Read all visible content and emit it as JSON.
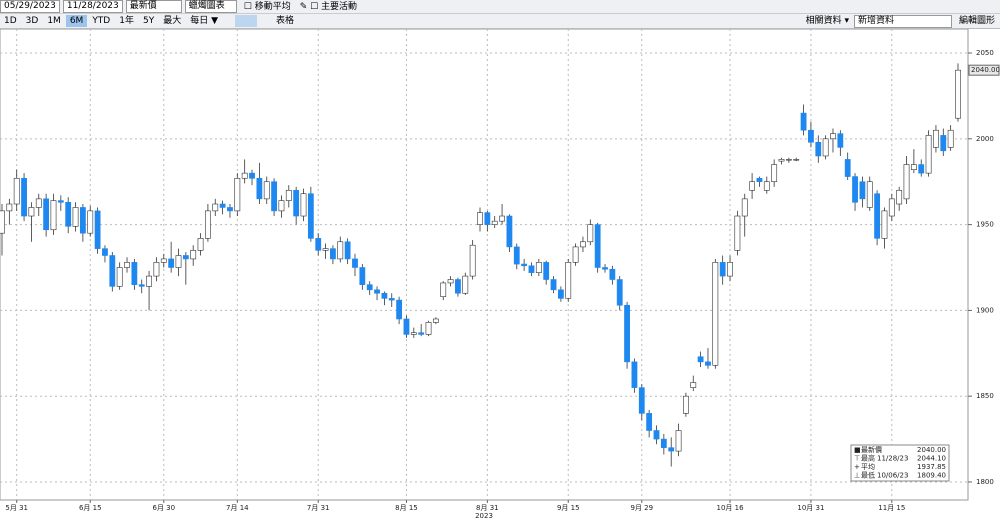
{
  "toolbar": {
    "start_date": "05/29/2023",
    "end_date": "11/28/2023",
    "field": "最新價",
    "chart_style": "蠟燭圖表",
    "moving_average": "移動平均",
    "key_events": "主要活動",
    "periods": [
      "1D",
      "3D",
      "1M",
      "6M",
      "YTD",
      "1年",
      "5Y",
      "最大",
      "每日 ▼"
    ],
    "table": "表格",
    "related": "相關資料 ▾",
    "add_data": "新增資料",
    "edit": "編輯圖形"
  },
  "chart_data": {
    "type": "candlestick",
    "categories": [
      null,
      null,
      "5月 31",
      null,
      null,
      null,
      null,
      null,
      null,
      null,
      null,
      null,
      "6月 15",
      null,
      null,
      null,
      null,
      null,
      null,
      null,
      null,
      null,
      "6月 30",
      null,
      null,
      null,
      null,
      null,
      null,
      null,
      null,
      null,
      "7月 14",
      null,
      null,
      null,
      null,
      null,
      null,
      null,
      null,
      null,
      null,
      "7月 31",
      null,
      null,
      null,
      null,
      null,
      null,
      null,
      null,
      null,
      null,
      null,
      "8月 15",
      null,
      null,
      null,
      null,
      null,
      null,
      null,
      null,
      null,
      null,
      "8月 31",
      null,
      null,
      null,
      null,
      null,
      null,
      null,
      null,
      null,
      null,
      "9月 15",
      null,
      null,
      null,
      null,
      null,
      null,
      null,
      null,
      null,
      "9月 29",
      null,
      null,
      null,
      null,
      null,
      null,
      null,
      null,
      null,
      null,
      null,
      "10月 16",
      null,
      null,
      null,
      null,
      null,
      null,
      null,
      null,
      null,
      null,
      "10月 31",
      null,
      null,
      null,
      null,
      null,
      null,
      null,
      null,
      null,
      null,
      "11月 15",
      null,
      null,
      null,
      null,
      null,
      null,
      null,
      null,
      null
    ],
    "year_label": "2023",
    "ohlc": [
      [
        1945,
        1962,
        1932,
        1958
      ],
      [
        1958,
        1965,
        1950,
        1962
      ],
      [
        1962,
        1982,
        1958,
        1977
      ],
      [
        1977,
        1980,
        1952,
        1955
      ],
      [
        1955,
        1963,
        1940,
        1960
      ],
      [
        1960,
        1968,
        1955,
        1965
      ],
      [
        1965,
        1968,
        1943,
        1947
      ],
      [
        1947,
        1968,
        1944,
        1964
      ],
      [
        1964,
        1967,
        1958,
        1963
      ],
      [
        1963,
        1966,
        1945,
        1949
      ],
      [
        1949,
        1963,
        1946,
        1960
      ],
      [
        1960,
        1962,
        1940,
        1945
      ],
      [
        1945,
        1961,
        1943,
        1958
      ],
      [
        1958,
        1960,
        1933,
        1936
      ],
      [
        1936,
        1938,
        1928,
        1932
      ],
      [
        1932,
        1934,
        1911,
        1914
      ],
      [
        1914,
        1928,
        1912,
        1925
      ],
      [
        1925,
        1931,
        1922,
        1928
      ],
      [
        1928,
        1930,
        1912,
        1915
      ],
      [
        1915,
        1918,
        1910,
        1914
      ],
      [
        1914,
        1923,
        1900,
        1920
      ],
      [
        1920,
        1931,
        1917,
        1928
      ],
      [
        1928,
        1933,
        1925,
        1930
      ],
      [
        1930,
        1940,
        1922,
        1925
      ],
      [
        1925,
        1936,
        1920,
        1932
      ],
      [
        1932,
        1934,
        1915,
        1930
      ],
      [
        1930,
        1938,
        1926,
        1935
      ],
      [
        1935,
        1945,
        1932,
        1942
      ],
      [
        1942,
        1962,
        1940,
        1958
      ],
      [
        1958,
        1965,
        1955,
        1962
      ],
      [
        1962,
        1964,
        1956,
        1960
      ],
      [
        1960,
        1962,
        1954,
        1958
      ],
      [
        1958,
        1980,
        1955,
        1977
      ],
      [
        1977,
        1988,
        1974,
        1980
      ],
      [
        1980,
        1982,
        1973,
        1977
      ],
      [
        1977,
        1986,
        1962,
        1965
      ],
      [
        1965,
        1978,
        1962,
        1975
      ],
      [
        1975,
        1977,
        1955,
        1958
      ],
      [
        1958,
        1967,
        1954,
        1964
      ],
      [
        1964,
        1973,
        1960,
        1970
      ],
      [
        1970,
        1972,
        1950,
        1955
      ],
      [
        1955,
        1971,
        1952,
        1968
      ],
      [
        1968,
        1972,
        1940,
        1942
      ],
      [
        1942,
        1945,
        1932,
        1935
      ],
      [
        1935,
        1939,
        1930,
        1936
      ],
      [
        1936,
        1938,
        1927,
        1930
      ],
      [
        1930,
        1943,
        1928,
        1940
      ],
      [
        1940,
        1942,
        1927,
        1930
      ],
      [
        1930,
        1933,
        1920,
        1925
      ],
      [
        1925,
        1927,
        1912,
        1915
      ],
      [
        1915,
        1917,
        1909,
        1912
      ],
      [
        1912,
        1914,
        1906,
        1910
      ],
      [
        1910,
        1911,
        1903,
        1907
      ],
      [
        1907,
        1910,
        1902,
        1906
      ],
      [
        1906,
        1908,
        1892,
        1895
      ],
      [
        1895,
        1897,
        1884,
        1886
      ],
      [
        1886,
        1890,
        1884,
        1887
      ],
      [
        1887,
        1892,
        1885,
        1886
      ],
      [
        1886,
        1894,
        1885,
        1893
      ],
      [
        1893,
        1896,
        1892,
        1895
      ],
      [
        1908,
        1917,
        1906,
        1916
      ],
      [
        1916,
        1920,
        1914,
        1918
      ],
      [
        1918,
        1919,
        1908,
        1910
      ],
      [
        1910,
        1922,
        1909,
        1920
      ],
      [
        1920,
        1941,
        1918,
        1938
      ],
      [
        1950,
        1960,
        1946,
        1957
      ],
      [
        1957,
        1958,
        1946,
        1950
      ],
      [
        1950,
        1955,
        1948,
        1952
      ],
      [
        1952,
        1962,
        1950,
        1955
      ],
      [
        1955,
        1956,
        1934,
        1937
      ],
      [
        1937,
        1939,
        1924,
        1927
      ],
      [
        1927,
        1930,
        1923,
        1926
      ],
      [
        1926,
        1928,
        1920,
        1922
      ],
      [
        1922,
        1930,
        1920,
        1928
      ],
      [
        1928,
        1929,
        1915,
        1918
      ],
      [
        1918,
        1920,
        1910,
        1912
      ],
      [
        1912,
        1914,
        1905,
        1907
      ],
      [
        1907,
        1930,
        1905,
        1928
      ],
      [
        1928,
        1939,
        1926,
        1937
      ],
      [
        1937,
        1943,
        1934,
        1940
      ],
      [
        1940,
        1953,
        1938,
        1950
      ],
      [
        1950,
        1951,
        1922,
        1925
      ],
      [
        1925,
        1927,
        1922,
        1924
      ],
      [
        1924,
        1926,
        1915,
        1918
      ],
      [
        1918,
        1920,
        1900,
        1903
      ],
      [
        1903,
        1905,
        1866,
        1870
      ],
      [
        1870,
        1872,
        1852,
        1855
      ],
      [
        1855,
        1857,
        1836,
        1840
      ],
      [
        1840,
        1842,
        1826,
        1830
      ],
      [
        1830,
        1833,
        1822,
        1825
      ],
      [
        1825,
        1828,
        1816,
        1820
      ],
      [
        1820,
        1826,
        1809,
        1818
      ],
      [
        1818,
        1834,
        1815,
        1830
      ],
      [
        1840,
        1852,
        1838,
        1850
      ],
      [
        1855,
        1862,
        1853,
        1858
      ],
      [
        1873,
        1876,
        1867,
        1870
      ],
      [
        1870,
        1878,
        1866,
        1868
      ],
      [
        1868,
        1930,
        1866,
        1928
      ],
      [
        1928,
        1932,
        1915,
        1920
      ],
      [
        1920,
        1932,
        1917,
        1928
      ],
      [
        1935,
        1958,
        1932,
        1955
      ],
      [
        1955,
        1968,
        1943,
        1965
      ],
      [
        1970,
        1980,
        1965,
        1975
      ],
      [
        1977,
        1978,
        1972,
        1975
      ],
      [
        1970,
        1978,
        1968,
        1975
      ],
      [
        1975,
        1988,
        1972,
        1985
      ],
      [
        1987,
        1989,
        1985,
        1988
      ],
      [
        1988,
        1989,
        1986,
        1988
      ],
      [
        1988,
        1989,
        1987,
        1988
      ],
      [
        2015,
        2020,
        2002,
        2005
      ],
      [
        2005,
        2010,
        1995,
        1998
      ],
      [
        1998,
        2002,
        1986,
        1990
      ],
      [
        1990,
        2002,
        1988,
        2000
      ],
      [
        2000,
        2006,
        1992,
        2003
      ],
      [
        2003,
        2005,
        1990,
        1995
      ],
      [
        1988,
        1992,
        1976,
        1978
      ],
      [
        1978,
        1980,
        1958,
        1963
      ],
      [
        1975,
        1978,
        1960,
        1965
      ],
      [
        1960,
        1978,
        1958,
        1975
      ],
      [
        1968,
        1970,
        1938,
        1942
      ],
      [
        1942,
        1960,
        1936,
        1958
      ],
      [
        1955,
        1968,
        1952,
        1965
      ],
      [
        1962,
        1972,
        1958,
        1970
      ],
      [
        1965,
        1990,
        1962,
        1985
      ],
      [
        1982,
        1994,
        1980,
        1985
      ],
      [
        1985,
        1988,
        1978,
        1980
      ],
      [
        1980,
        2005,
        1978,
        2002
      ],
      [
        1995,
        2008,
        1992,
        2005
      ],
      [
        2002,
        2006,
        1990,
        1993
      ],
      [
        1995,
        2008,
        1993,
        2005
      ],
      [
        2012,
        2044,
        2010,
        2040
      ]
    ],
    "up_color": "#ffffff",
    "down_color": "#1e88f0",
    "ylim": [
      1789.5,
      2064
    ],
    "yticks": [
      1800,
      1850,
      1900,
      1950,
      2000,
      2050
    ],
    "grid": true,
    "stats": [
      {
        "label": "最新價",
        "date": null,
        "value": "2040.00"
      },
      {
        "label": "最高",
        "date": "11/28/23",
        "value": "2044.10"
      },
      {
        "label": "平均",
        "date": null,
        "value": "1937.85"
      },
      {
        "label": "最低",
        "date": "10/06/23",
        "value": "1809.40"
      }
    ]
  }
}
